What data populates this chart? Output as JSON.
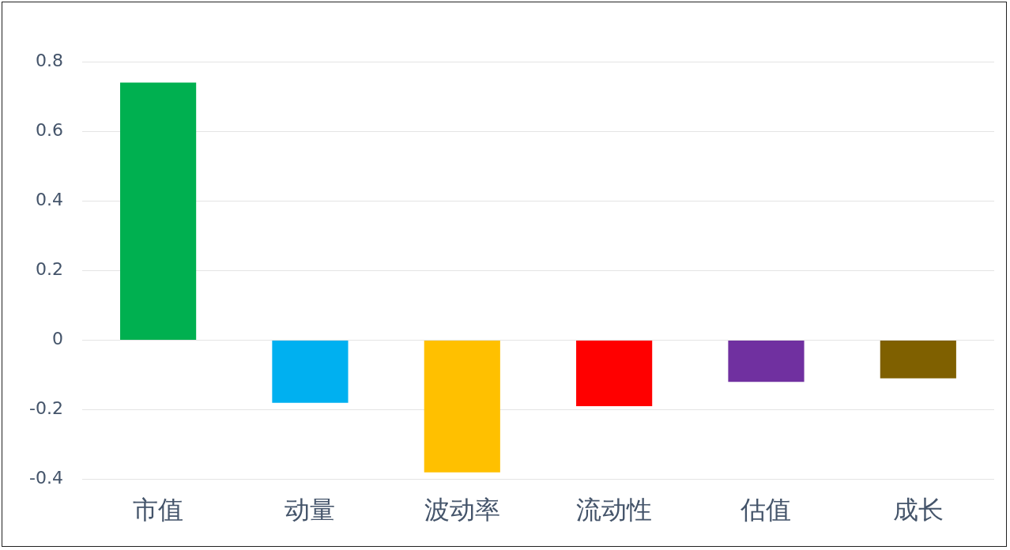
{
  "chart_data": {
    "type": "bar",
    "categories": [
      "市值",
      "动量",
      "波动率",
      "流动性",
      "估值",
      "成长"
    ],
    "values": [
      0.74,
      -0.18,
      -0.38,
      -0.19,
      -0.12,
      -0.11
    ],
    "colors": [
      "#00b050",
      "#00b0f0",
      "#ffc000",
      "#ff0000",
      "#7030a0",
      "#7f6000"
    ],
    "ylim": [
      -0.4,
      0.8
    ],
    "yticks": [
      -0.4,
      -0.2,
      0,
      0.2,
      0.4,
      0.6,
      0.8
    ],
    "grid": "y",
    "legend": false
  }
}
